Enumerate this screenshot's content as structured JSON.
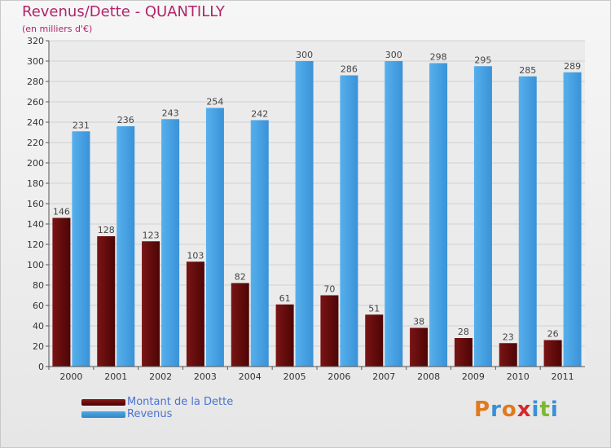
{
  "chart_data": {
    "type": "bar",
    "title": "Revenus/Dette - QUANTILLY",
    "subtitle": "(en milliers d'€)",
    "categories": [
      "2000",
      "2001",
      "2002",
      "2003",
      "2004",
      "2005",
      "2006",
      "2007",
      "2008",
      "2009",
      "2010",
      "2011"
    ],
    "series": [
      {
        "name": "Montant de la Dette",
        "color": "#6a0d0d",
        "values": [
          146,
          128,
          123,
          103,
          82,
          61,
          70,
          51,
          38,
          28,
          23,
          26
        ]
      },
      {
        "name": "Revenus",
        "color": "#3b9ae0",
        "values": [
          231,
          236,
          243,
          254,
          242,
          300,
          286,
          300,
          298,
          295,
          285,
          289
        ]
      }
    ],
    "ylim": [
      0,
      320
    ],
    "yticks": [
      0,
      20,
      40,
      60,
      80,
      100,
      120,
      140,
      160,
      180,
      200,
      220,
      240,
      260,
      280,
      300,
      320
    ],
    "grid": true,
    "legend": "bottom-left"
  },
  "logo": {
    "letters": [
      "P",
      "r",
      "o",
      "x",
      "i",
      "t",
      "i"
    ],
    "colors": [
      "#e07a1c",
      "#3a8fd6",
      "#e07a1c",
      "#d9262c",
      "#3a8fd6",
      "#7cb82f",
      "#3a8fd6"
    ]
  }
}
